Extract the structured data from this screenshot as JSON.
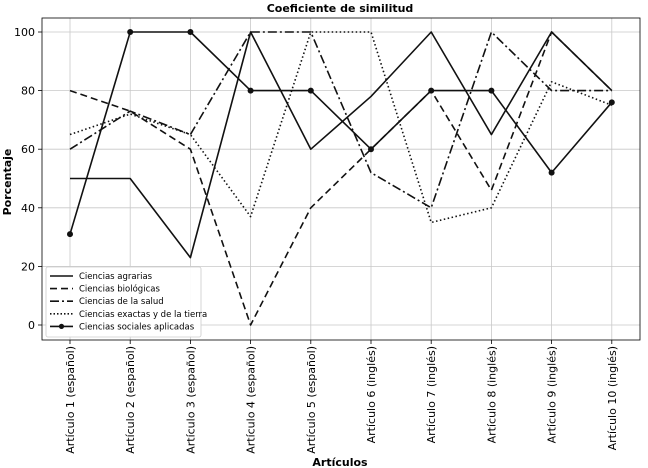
{
  "chart_data": {
    "type": "line",
    "title": "Coeficiente de similitud",
    "xlabel": "Artículos",
    "ylabel": "Porcentaje",
    "categories": [
      "Artículo 1 (español)",
      "Artículo 2 (español)",
      "Artículo 3 (español)",
      "Artículo 4 (español)",
      "Artículo 5 (español)",
      "Artículo 6 (inglés)",
      "Artículo 7 (inglés)",
      "Artículo 8 (inglés)",
      "Artículo 9 (inglés)",
      "Artículo 10 (inglés)"
    ],
    "ylim": [
      -5,
      105
    ],
    "yticks": [
      0,
      20,
      40,
      60,
      80,
      100
    ],
    "grid": true,
    "legend_position": "lower-left",
    "series": [
      {
        "name": "Ciencias agrarias",
        "style": "solid",
        "marker": false,
        "values": [
          50,
          50,
          23,
          100,
          60,
          78,
          100,
          65,
          100,
          80
        ]
      },
      {
        "name": "Ciencias biológicas",
        "style": "dashed",
        "marker": false,
        "values": [
          80,
          73,
          60,
          0,
          40,
          60,
          80,
          46,
          100,
          80
        ]
      },
      {
        "name": "Ciencias de la salud",
        "style": "dashdot",
        "marker": false,
        "values": [
          60,
          73,
          65,
          100,
          100,
          52,
          40,
          100,
          80,
          80
        ]
      },
      {
        "name": "Ciencias exactas y de la tierra",
        "style": "dotted",
        "marker": false,
        "values": [
          65,
          72,
          65,
          37,
          100,
          100,
          35,
          40,
          83,
          75
        ]
      },
      {
        "name": "Ciencias sociales aplicadas",
        "style": "solid",
        "marker": true,
        "values": [
          31,
          100,
          100,
          80,
          80,
          60,
          80,
          80,
          52,
          76
        ]
      }
    ]
  }
}
